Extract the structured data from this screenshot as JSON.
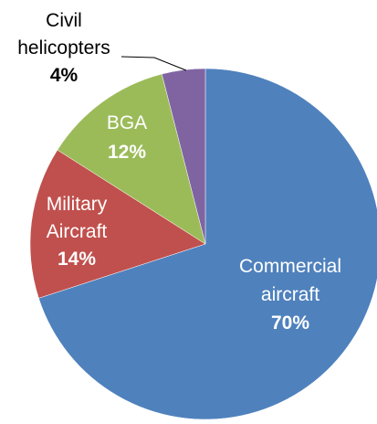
{
  "chart_data": {
    "type": "pie",
    "title": "",
    "slices": [
      {
        "label_lines": [
          "Commercial",
          "aircraft"
        ],
        "value": 70,
        "value_label": "70%",
        "color": "#4f81bd",
        "label_color": "#ffffff"
      },
      {
        "label_lines": [
          "Military",
          "Aircraft"
        ],
        "value": 14,
        "value_label": "14%",
        "color": "#c0504d",
        "label_color": "#ffffff"
      },
      {
        "label_lines": [
          "BGA"
        ],
        "value": 12,
        "value_label": "12%",
        "color": "#9bbb59",
        "label_color": "#ffffff"
      },
      {
        "label_lines": [
          "Civil",
          "helicopters"
        ],
        "value": 4,
        "value_label": "4%",
        "color": "#8064a2",
        "label_color": "#000000"
      }
    ],
    "start_angle_deg": 0,
    "direction": "clockwise",
    "legend": "none"
  }
}
